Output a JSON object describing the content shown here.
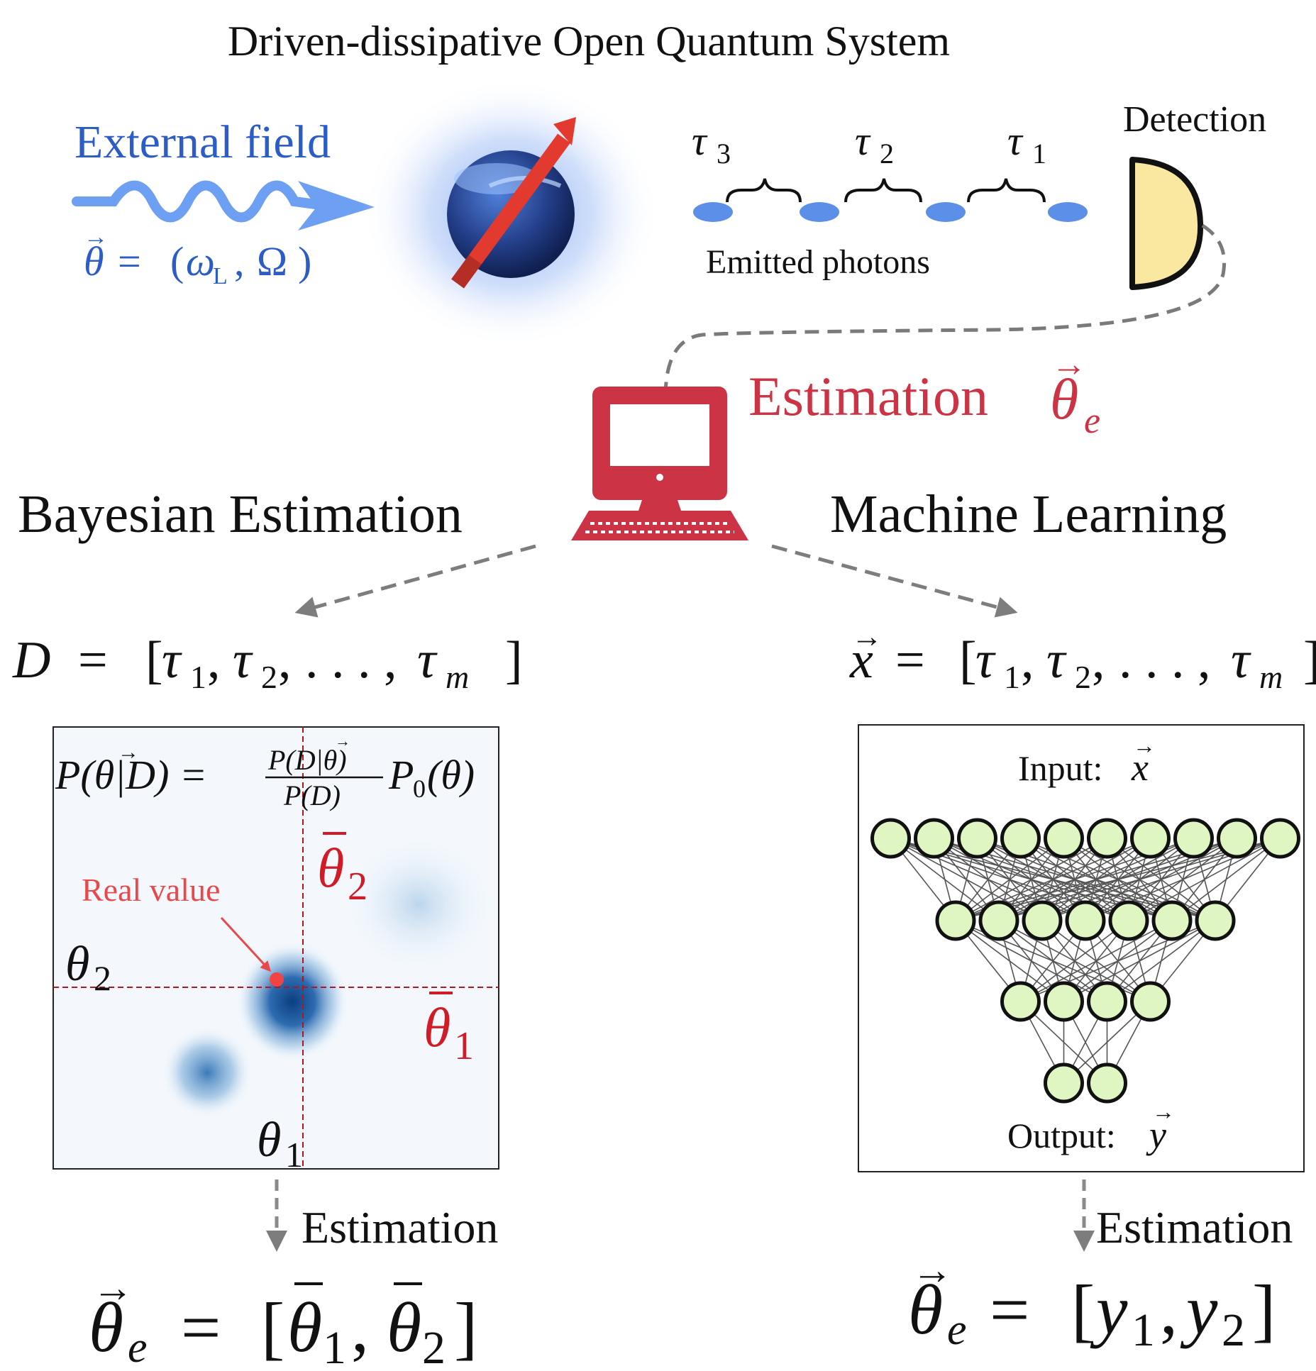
{
  "title": "Driven-dissipative Open Quantum System",
  "external_field": {
    "label": "External field",
    "theta_vec": "θ",
    "equals": "=",
    "params_open": "(",
    "omega": "ω",
    "omega_sub": "L",
    "comma": ",",
    "Omega": "Ω",
    "params_close": ")"
  },
  "photons": {
    "label": "Emitted photons",
    "taus": [
      {
        "sym": "τ",
        "sub": "3"
      },
      {
        "sym": "τ",
        "sub": "2"
      },
      {
        "sym": "τ",
        "sub": "1"
      }
    ]
  },
  "detection_label": "Detection",
  "estimation_center": {
    "text": "Estimation",
    "theta": "θ",
    "sub": "e"
  },
  "bayesian": {
    "heading": "Bayesian Estimation",
    "data_eq": {
      "lhs": "D",
      "eq": "=",
      "open": "[",
      "t1": "τ",
      "s1": "1",
      "t2": "τ",
      "s2": "2",
      "dots": ". . . ,",
      "tm": "τ",
      "sm": "m",
      "close": "]"
    },
    "formula": {
      "lhs": "P(θ|D) =",
      "num": "P(D|θ)",
      "den": "P(D)",
      "rhs": "P",
      "rhs_sub": "0",
      "rhs_arg": "(θ)"
    },
    "real_value_label": "Real value",
    "theta1": {
      "sym": "θ",
      "sub": "1"
    },
    "theta2": {
      "sym": "θ",
      "sub": "2"
    },
    "theta1_bar": {
      "sym": "θ",
      "sub": "1"
    },
    "theta2_bar": {
      "sym": "θ",
      "sub": "2"
    },
    "estimation_label": "Estimation",
    "result": {
      "lhs": "θ",
      "lhs_sub": "e",
      "eq": "=",
      "open": "[",
      "a": "θ",
      "a_sub": "1",
      "b": "θ",
      "b_sub": "2",
      "close": "]"
    }
  },
  "ml": {
    "heading": "Machine Learning",
    "data_eq": {
      "lhs": "x",
      "eq": "=",
      "open": "[",
      "t1": "τ",
      "s1": "1",
      "t2": "τ",
      "s2": "2",
      "dots": ". . . ,",
      "tm": "τ",
      "sm": "m",
      "close": "]"
    },
    "input_label": "Input: ",
    "input_sym": "x",
    "output_label": "Output: ",
    "output_sym": "y",
    "layers": [
      10,
      7,
      4,
      2
    ],
    "estimation_label": "Estimation",
    "result": {
      "lhs": "θ",
      "lhs_sub": "e",
      "eq": "=",
      "open": "[",
      "a": "y",
      "a_sub": "1",
      "b": "y",
      "b_sub": "2",
      "close": "]"
    }
  },
  "colors": {
    "blue_text": "#2c5cc5",
    "red": "#cc3344",
    "dark_red": "#d01c26",
    "node_fill": "#dff5c2",
    "photon": "#5b8fe8",
    "detector": "#fbe8a0"
  }
}
